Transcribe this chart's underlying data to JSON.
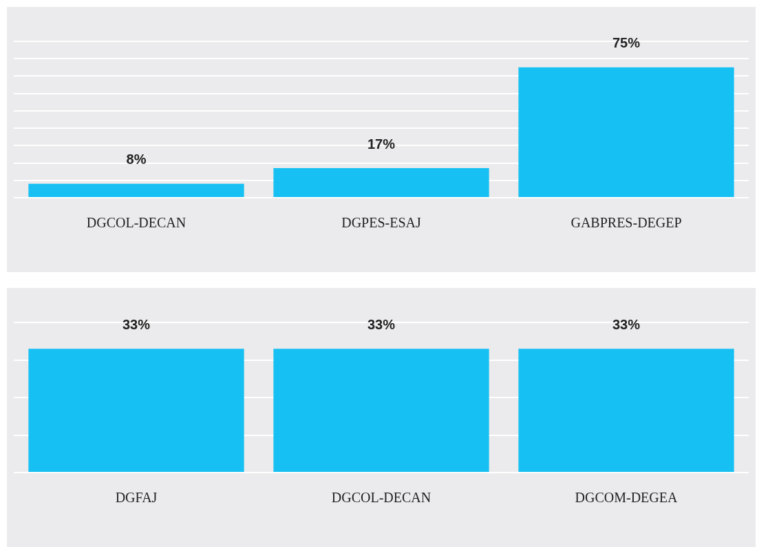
{
  "chart_data": [
    {
      "type": "bar",
      "categories": [
        "DGCOL-DECAN",
        "DGPES-ESAJ",
        "GABPRES-DEGEP"
      ],
      "values": [
        8,
        17,
        75
      ],
      "value_labels": [
        "8%",
        "17%",
        "75%"
      ],
      "color": "#17c0f2",
      "yticks": [
        {
          "value": 0,
          "label": null
        },
        {
          "value": 10,
          "label": null
        },
        {
          "value": 20,
          "label": null
        },
        {
          "value": 30,
          "label": null
        },
        {
          "value": 40,
          "label": null
        },
        {
          "value": 50,
          "label": null
        },
        {
          "value": 60,
          "label": null
        },
        {
          "value": 70,
          "label": null
        },
        {
          "value": 80,
          "label": null
        },
        {
          "value": 90,
          "label": null
        }
      ],
      "grid": "y",
      "tick_labels": "x",
      "legend": false
    },
    {
      "type": "bar",
      "categories": [
        "DGFAJ",
        "DGCOL-DECAN",
        "DGCOM-DEGEA"
      ],
      "values": [
        33,
        33,
        33
      ],
      "value_labels": [
        "33%",
        "33%",
        "33%"
      ],
      "color": "#17c0f2",
      "yticks": [
        {
          "value": 0,
          "label": null
        },
        {
          "value": 10,
          "label": null
        },
        {
          "value": 20,
          "label": null
        },
        {
          "value": 30,
          "label": null
        },
        {
          "value": 40,
          "label": null
        }
      ],
      "grid": "y",
      "tick_labels": "x",
      "legend": false
    }
  ]
}
